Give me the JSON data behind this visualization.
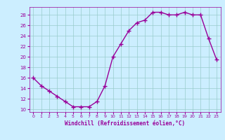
{
  "x": [
    0,
    1,
    2,
    3,
    4,
    5,
    6,
    7,
    8,
    9,
    10,
    11,
    12,
    13,
    14,
    15,
    16,
    17,
    18,
    19,
    20,
    21,
    22,
    23
  ],
  "y": [
    16,
    14.5,
    13.5,
    12.5,
    11.5,
    10.5,
    10.5,
    10.5,
    11.5,
    14.5,
    20,
    22.5,
    25,
    26.5,
    27,
    28.5,
    28.5,
    28,
    28,
    28.5,
    28,
    28,
    23.5,
    19.5
  ],
  "line_color": "#990099",
  "marker": "+",
  "marker_color": "#990099",
  "bg_color": "#cceeff",
  "grid_color": "#99cccc",
  "xlabel": "Windchill (Refroidissement éolien,°C)",
  "xlabel_color": "#990099",
  "tick_color": "#990099",
  "xlim": [
    -0.5,
    23.5
  ],
  "ylim": [
    9.5,
    29.5
  ],
  "yticks": [
    10,
    12,
    14,
    16,
    18,
    20,
    22,
    24,
    26,
    28
  ],
  "xticks": [
    0,
    1,
    2,
    3,
    4,
    5,
    6,
    7,
    8,
    9,
    10,
    11,
    12,
    13,
    14,
    15,
    16,
    17,
    18,
    19,
    20,
    21,
    22,
    23
  ],
  "linewidth": 1.0,
  "markersize": 4
}
